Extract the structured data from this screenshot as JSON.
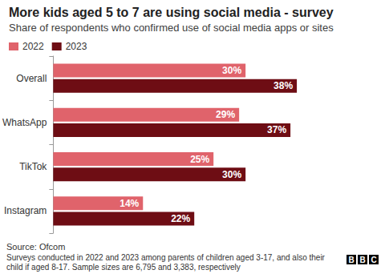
{
  "chart_data": {
    "type": "bar",
    "orientation": "horizontal",
    "title": "More kids aged 5 to 7 are using social media - survey",
    "subtitle": "Share of respondents who confirmed use of social media apps or sites",
    "categories": [
      "Overall",
      "WhatsApp",
      "TikTok",
      "Instagram"
    ],
    "series": [
      {
        "name": "2022",
        "color": "#e0636b",
        "values": [
          30,
          29,
          25,
          14
        ],
        "value_labels": [
          "30%",
          "29%",
          "25%",
          "14%"
        ]
      },
      {
        "name": "2023",
        "color": "#6e0d14",
        "values": [
          38,
          37,
          30,
          22
        ],
        "value_labels": [
          "38%",
          "37%",
          "30%",
          "22%"
        ]
      }
    ],
    "xlim": [
      0,
      50
    ],
    "xticks": [
      0,
      50
    ],
    "grid": false,
    "legend": "top-left",
    "data_labels": true,
    "tick_labels": "y",
    "source": "Source: Ofcom",
    "note": "Surveys conducted in 2022 and 2023 among parents of children aged 3-17, and also their child if aged 8-17. Sample sizes are 6,795 and 3,383, respectively",
    "logo": "BBC"
  }
}
